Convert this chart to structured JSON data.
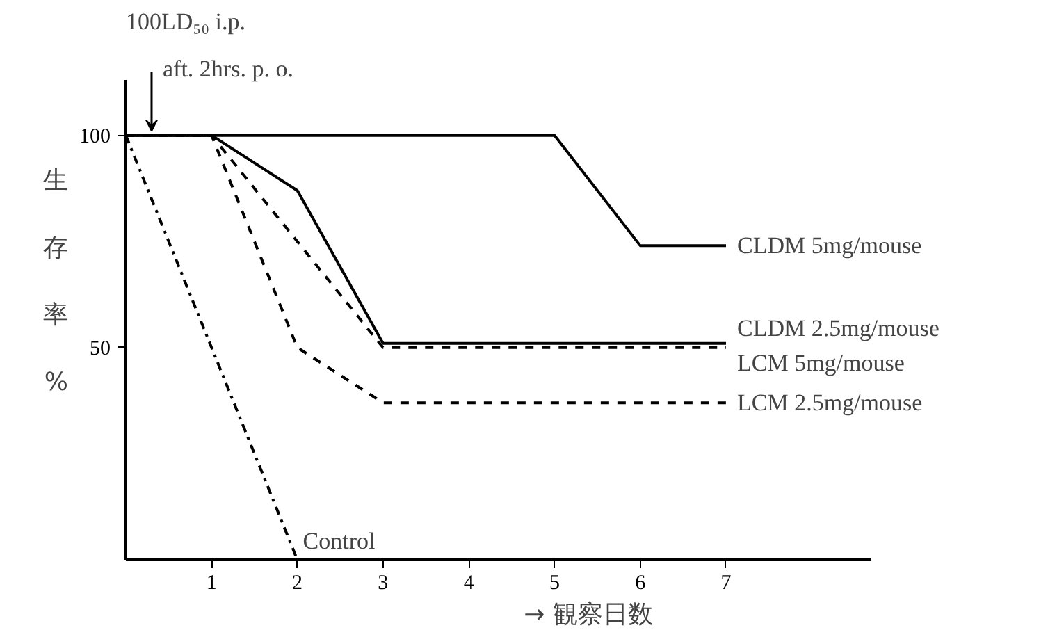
{
  "chart_data": {
    "type": "line",
    "xlabel": "→ 観察日数",
    "ylabel": "生存率%",
    "xlim": [
      0,
      8.7
    ],
    "ylim": [
      0,
      113
    ],
    "xticks": [
      1,
      2,
      3,
      4,
      5,
      6,
      7
    ],
    "yticks": [
      50,
      100
    ],
    "grid": false,
    "legend": false,
    "annotations": [
      "100LD₅₀ i.p.",
      {
        "text": "aft. 2hrs. p. o.",
        "x": 0.3,
        "y": 100
      }
    ],
    "series": [
      {
        "name": "CLDM 5mg/mouse",
        "color": "#000000",
        "line_style": "solid",
        "x": [
          0,
          5,
          6,
          7
        ],
        "values": [
          100,
          100,
          74,
          74
        ]
      },
      {
        "name": "CLDM 2.5mg/mouse",
        "color": "#000000",
        "line_style": "solid",
        "x": [
          0,
          1,
          2,
          3,
          7
        ],
        "values": [
          100,
          100,
          87,
          51,
          51
        ]
      },
      {
        "name": "LCM 5mg/mouse",
        "color": "#000000",
        "line_style": "dashed",
        "x": [
          0,
          1,
          3,
          7
        ],
        "values": [
          100,
          100,
          50,
          50
        ]
      },
      {
        "name": "LCM 2.5mg/mouse",
        "color": "#000000",
        "line_style": "dashed",
        "x": [
          0,
          1,
          2,
          3,
          7
        ],
        "values": [
          100,
          100,
          50,
          37,
          37
        ]
      },
      {
        "name": "Control",
        "color": "#000000",
        "line_style": "dashdot",
        "x": [
          0,
          2
        ],
        "values": [
          100,
          0
        ]
      }
    ]
  }
}
